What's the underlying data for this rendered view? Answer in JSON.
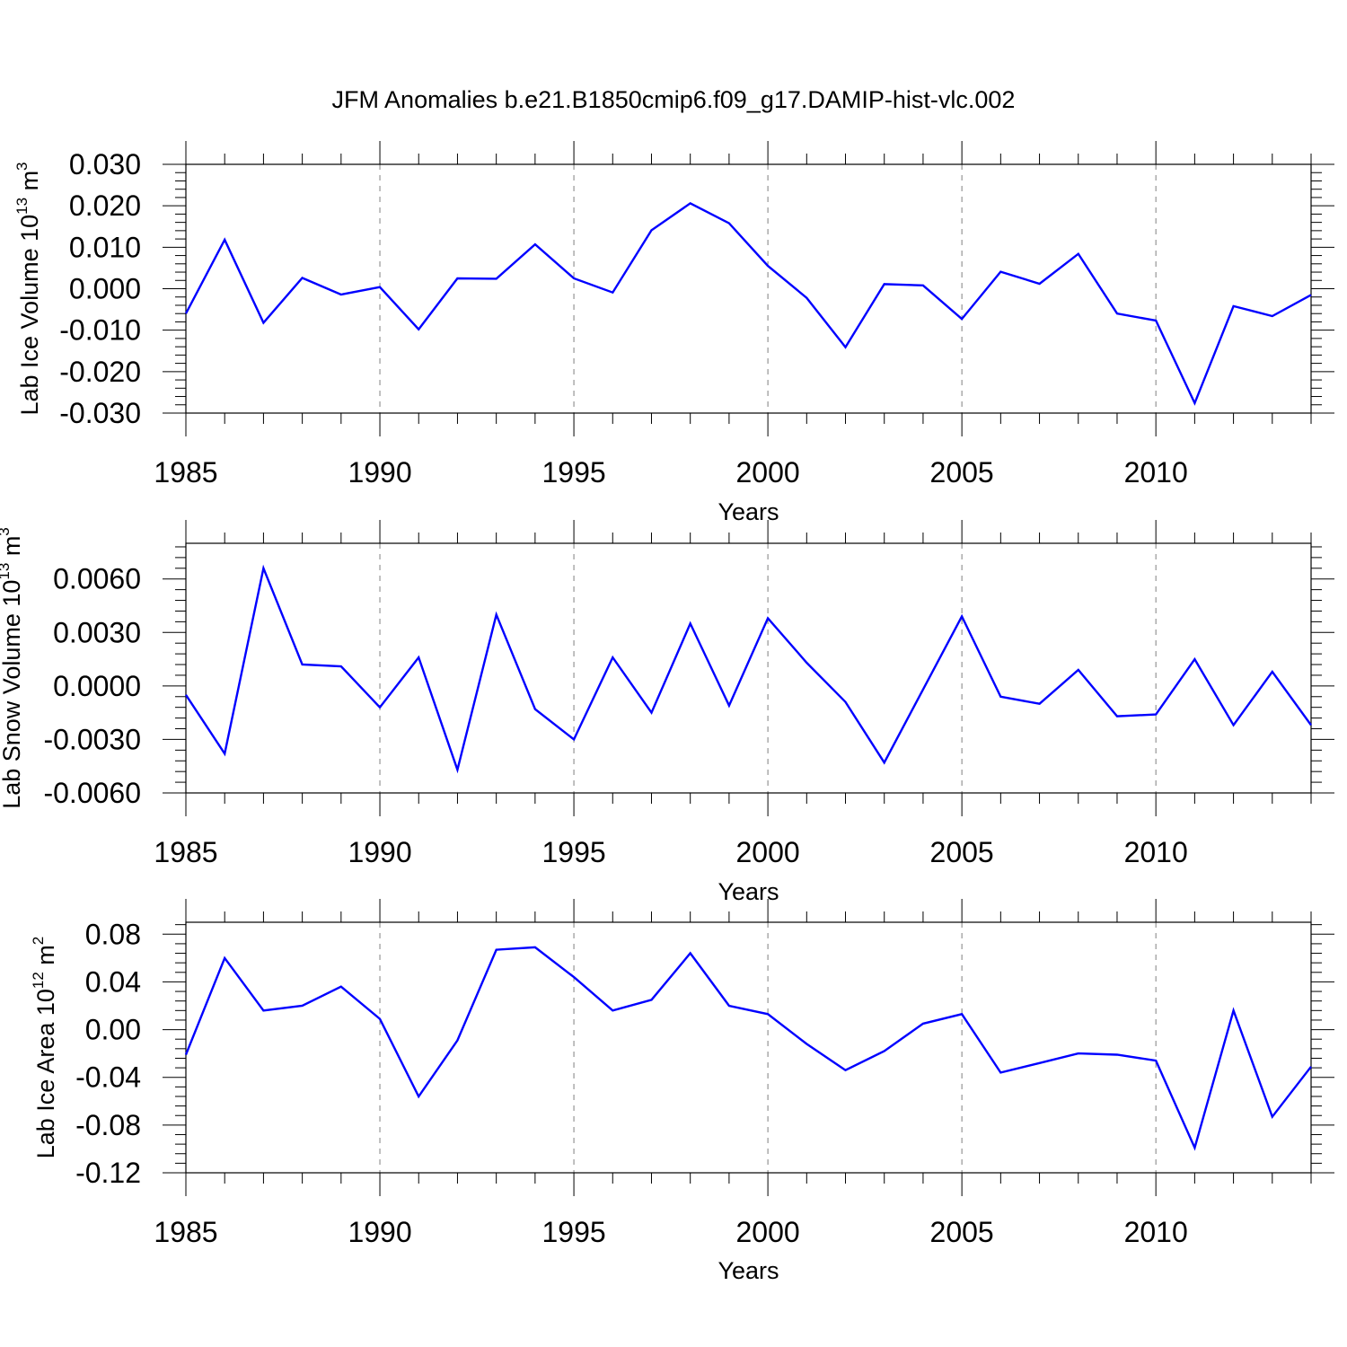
{
  "figure": {
    "title": "JFM Anomalies b.e21.B1850cmip6.f09_g17.DAMIP-hist-vlc.002"
  },
  "line_color": "#0000ff",
  "grid_color": "#808080",
  "chart_data": [
    {
      "type": "line",
      "title": "",
      "xlabel": "Years",
      "ylabel": {
        "text": "Lab Ice Volume 10",
        "exp": "13",
        "unit": " m",
        "unit_exp": "3"
      },
      "x": [
        1985,
        1986,
        1987,
        1988,
        1989,
        1990,
        1991,
        1992,
        1993,
        1994,
        1995,
        1996,
        1997,
        1998,
        1999,
        2000,
        2001,
        2002,
        2003,
        2004,
        2005,
        2006,
        2007,
        2008,
        2009,
        2010,
        2011,
        2012,
        2013,
        2014
      ],
      "xlim": [
        1985,
        2014
      ],
      "xticks": [
        "1985",
        "1990",
        "1995",
        "2000",
        "2005",
        "2010"
      ],
      "ylim": [
        -0.03,
        0.03
      ],
      "yticks": [
        "-0.030",
        "-0.020",
        "-0.010",
        "0.000",
        "0.010",
        "0.020",
        "0.030"
      ],
      "grid": "vertical dashed at major x ticks",
      "series": [
        {
          "values": [
            -0.006,
            0.0118,
            -0.0082,
            0.0026,
            -0.0014,
            0.0004,
            -0.0098,
            0.0025,
            0.0024,
            0.0107,
            0.0025,
            -0.0009,
            0.0141,
            0.0206,
            0.0158,
            0.0055,
            -0.0022,
            -0.0141,
            0.0011,
            0.0008,
            -0.0073,
            0.0041,
            0.0012,
            0.0084,
            -0.006,
            -0.0077,
            -0.0276,
            -0.0042,
            -0.0066,
            -0.0015
          ]
        }
      ]
    },
    {
      "type": "line",
      "title": "",
      "xlabel": "Years",
      "ylabel": {
        "text": "Lab Snow Volume 10",
        "exp": "13",
        "unit": " m",
        "unit_exp": "3"
      },
      "x": [
        1985,
        1986,
        1987,
        1988,
        1989,
        1990,
        1991,
        1992,
        1993,
        1994,
        1995,
        1996,
        1997,
        1998,
        1999,
        2000,
        2001,
        2002,
        2003,
        2004,
        2005,
        2006,
        2007,
        2008,
        2009,
        2010,
        2011,
        2012,
        2013,
        2014
      ],
      "xlim": [
        1985,
        2014
      ],
      "xticks": [
        "1985",
        "1990",
        "1995",
        "2000",
        "2005",
        "2010"
      ],
      "ylim": [
        -0.006,
        0.008
      ],
      "yticks": [
        "-0.0060",
        "-0.0030",
        "0.0000",
        "0.0030",
        "0.0060"
      ],
      "grid": "vertical dashed at major x ticks",
      "series": [
        {
          "values": [
            -0.0005,
            -0.0038,
            0.0066,
            0.0012,
            0.0011,
            -0.0012,
            0.0016,
            -0.0047,
            0.004,
            -0.0013,
            -0.003,
            0.0016,
            -0.0015,
            0.0035,
            -0.0011,
            0.0038,
            0.0013,
            -0.0009,
            -0.0043,
            -0.0002,
            0.0039,
            -0.0006,
            -0.001,
            0.0009,
            -0.0017,
            -0.0016,
            0.0015,
            -0.0022,
            0.0008,
            -0.0022
          ]
        }
      ]
    },
    {
      "type": "line",
      "title": "",
      "xlabel": "Years",
      "ylabel": {
        "text": "Lab Ice Area 10",
        "exp": "12",
        "unit": " m",
        "unit_exp": "2"
      },
      "x": [
        1985,
        1986,
        1987,
        1988,
        1989,
        1990,
        1991,
        1992,
        1993,
        1994,
        1995,
        1996,
        1997,
        1998,
        1999,
        2000,
        2001,
        2002,
        2003,
        2004,
        2005,
        2006,
        2007,
        2008,
        2009,
        2010,
        2011,
        2012,
        2013,
        2014
      ],
      "xlim": [
        1985,
        2014
      ],
      "xticks": [
        "1985",
        "1990",
        "1995",
        "2000",
        "2005",
        "2010"
      ],
      "ylim": [
        -0.12,
        0.09
      ],
      "yticks": [
        "-0.12",
        "-0.08",
        "-0.04",
        "0.00",
        "0.04",
        "0.08"
      ],
      "grid": "vertical dashed at major x ticks",
      "series": [
        {
          "values": [
            -0.021,
            0.06,
            0.016,
            0.02,
            0.036,
            0.009,
            -0.056,
            -0.009,
            0.067,
            0.069,
            0.044,
            0.016,
            0.025,
            0.064,
            0.02,
            0.013,
            -0.012,
            -0.034,
            -0.018,
            0.005,
            0.013,
            -0.036,
            -0.028,
            -0.02,
            -0.021,
            -0.026,
            -0.099,
            0.016,
            -0.073,
            -0.031
          ]
        }
      ]
    }
  ]
}
